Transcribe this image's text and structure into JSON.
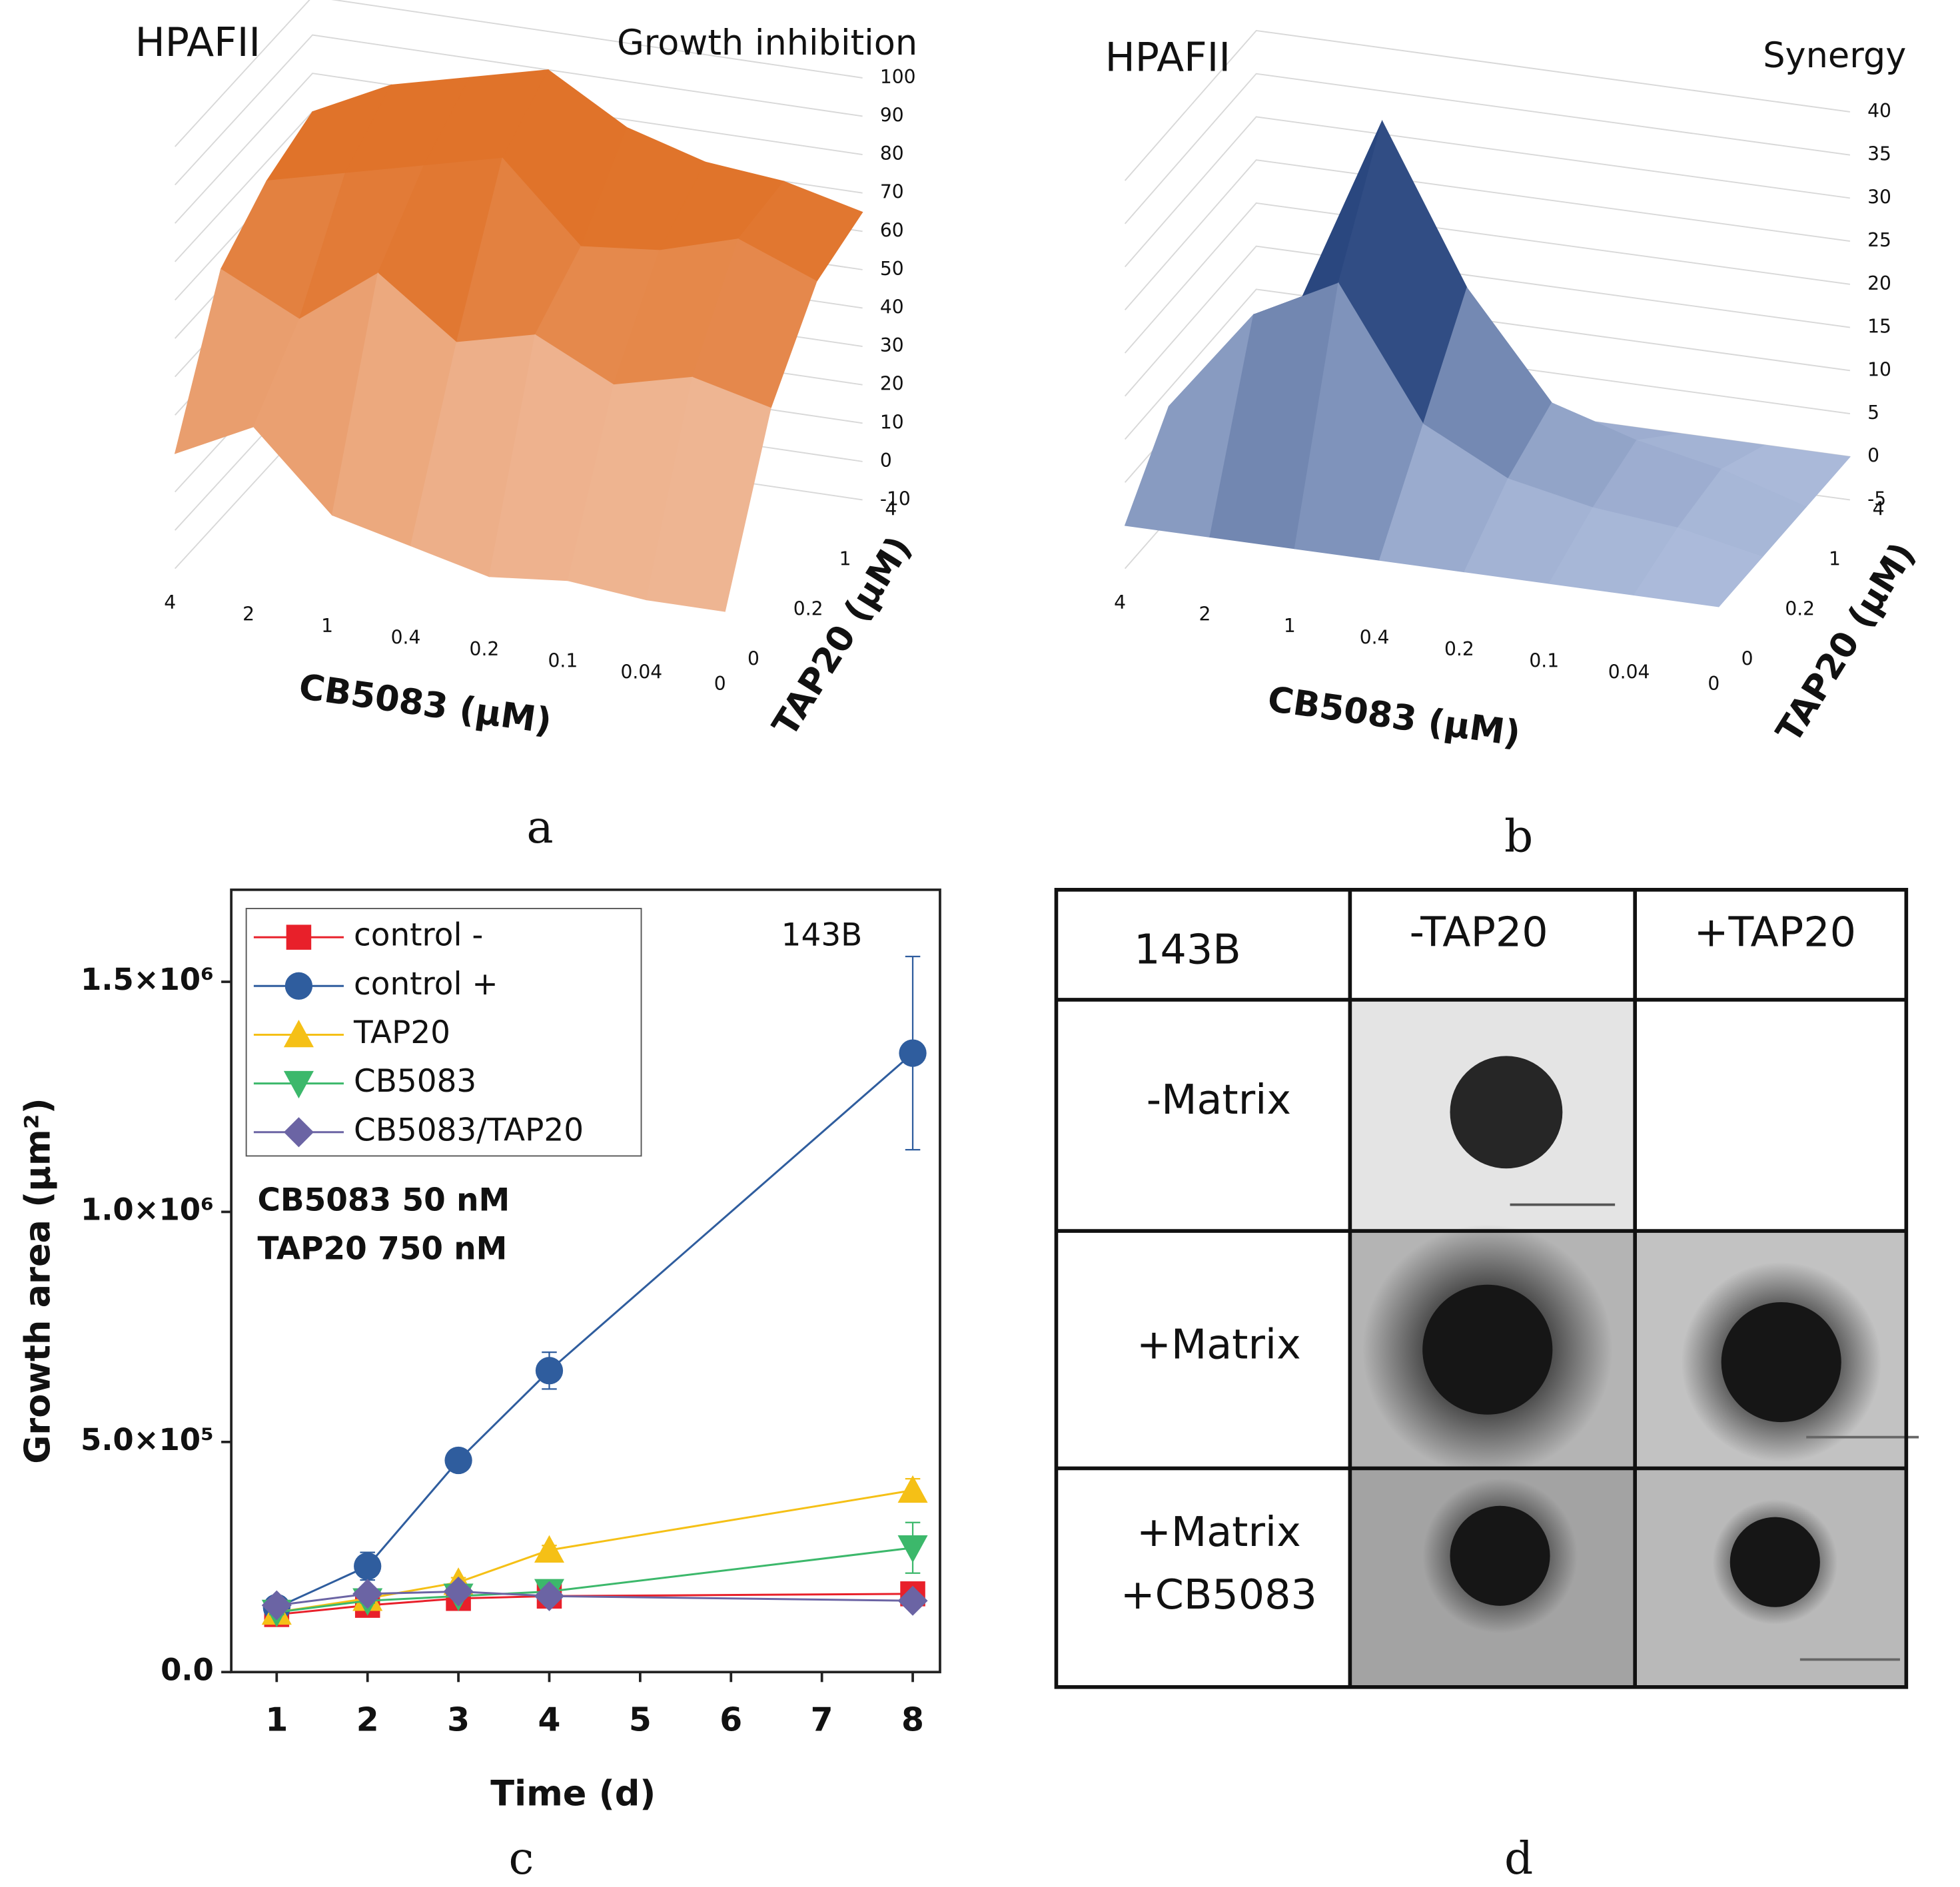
{
  "chart_data": [
    {
      "type": "surface",
      "title": "HPAFII",
      "subtitle": "Growth inhibition",
      "xlabel": "CB5083 (µM)",
      "ylabel": "TAP20 (µM)",
      "x_categories": [
        "4",
        "2",
        "1",
        "0.4",
        "0.2",
        "0.1",
        "0.04",
        "0"
      ],
      "y_categories": [
        "0",
        "0.2",
        "1",
        "4"
      ],
      "values": [
        [
          20,
          30,
          10,
          5,
          0,
          2,
          0,
          0
        ],
        [
          55,
          45,
          60,
          45,
          50,
          40,
          45,
          40
        ],
        [
          65,
          70,
          75,
          80,
          60,
          62,
          68,
          60
        ],
        [
          70,
          80,
          85,
          90,
          78,
          72,
          70,
          65
        ]
      ],
      "zlim": [
        -10,
        100
      ],
      "zticks": [
        -10,
        0,
        10,
        20,
        30,
        40,
        50,
        60,
        70,
        80,
        90,
        100
      ],
      "colors": [
        "#f8e0d6",
        "#e0732a"
      ]
    },
    {
      "type": "surface",
      "title": "HPAFII",
      "subtitle": "Synergy",
      "xlabel": "CB5083 (µM)",
      "ylabel": "TAP20 (µM)",
      "x_categories": [
        "4",
        "2",
        "1",
        "0.4",
        "0.2",
        "0.1",
        "0.04",
        "0"
      ],
      "y_categories": [
        "0",
        "0.2",
        "1",
        "4"
      ],
      "values": [
        [
          0,
          0,
          0,
          0,
          0,
          0,
          0,
          0
        ],
        [
          8,
          20,
          25,
          10,
          5,
          3,
          2,
          0
        ],
        [
          5,
          15,
          38,
          20,
          8,
          5,
          3,
          0
        ],
        [
          0,
          0,
          0,
          0,
          0,
          0,
          0,
          0
        ]
      ],
      "zlim": [
        -5,
        40
      ],
      "zticks": [
        -5,
        0,
        5,
        10,
        15,
        20,
        25,
        30,
        35,
        40
      ],
      "colors": [
        "#c9d5ef",
        "#1c3a75"
      ]
    },
    {
      "type": "line",
      "xlabel": "Time (d)",
      "ylabel": "Growth area (µm²)",
      "annotations": [
        "143B",
        "CB5083 50 nM",
        "TAP20 750 nM"
      ],
      "x": [
        1,
        2,
        3,
        4,
        8
      ],
      "series": [
        {
          "name": "control -",
          "color": "#e8202a",
          "marker": "square",
          "values": [
            125000,
            145000,
            160000,
            165000,
            170000
          ],
          "errors": [
            5000,
            5000,
            5000,
            5000,
            5000
          ]
        },
        {
          "name": "control +",
          "color": "#2f5d9e",
          "marker": "circle",
          "values": [
            140000,
            230000,
            460000,
            655000,
            1345000
          ],
          "errors": [
            5000,
            30000,
            10000,
            40000,
            210000
          ]
        },
        {
          "name": "TAP20",
          "color": "#f5c016",
          "marker": "triangle-up",
          "values": [
            130000,
            160000,
            195000,
            265000,
            395000
          ],
          "errors": [
            5000,
            5000,
            10000,
            10000,
            25000
          ]
        },
        {
          "name": "CB5083",
          "color": "#3cb86b",
          "marker": "triangle-down",
          "values": [
            130000,
            155000,
            165000,
            175000,
            270000
          ],
          "errors": [
            5000,
            5000,
            5000,
            10000,
            55000
          ]
        },
        {
          "name": "CB5083/TAP20",
          "color": "#6b64a4",
          "marker": "diamond",
          "values": [
            145000,
            170000,
            175000,
            165000,
            155000
          ],
          "errors": [
            5000,
            5000,
            5000,
            5000,
            5000
          ]
        }
      ],
      "xlim": [
        0.5,
        8.3
      ],
      "xticks": [
        1,
        2,
        3,
        4,
        5,
        6,
        7,
        8
      ],
      "ylim": [
        0,
        1700000
      ],
      "yticks": [
        {
          "value": 0,
          "label": "0.0"
        },
        {
          "value": 500000,
          "label": "5.0×10⁵"
        },
        {
          "value": 1000000,
          "label": "1.0×10⁶"
        },
        {
          "value": 1500000,
          "label": "1.5×10⁶"
        }
      ],
      "legend": "upper left"
    }
  ],
  "table": {
    "header": [
      "143B",
      "-TAP20",
      "+TAP20"
    ],
    "row_labels": [
      [
        "-Matrix"
      ],
      [
        "+Matrix"
      ],
      [
        "+Matrix",
        "+CB5083"
      ]
    ]
  },
  "panel_labels": [
    "a",
    "b",
    "c",
    "d"
  ]
}
